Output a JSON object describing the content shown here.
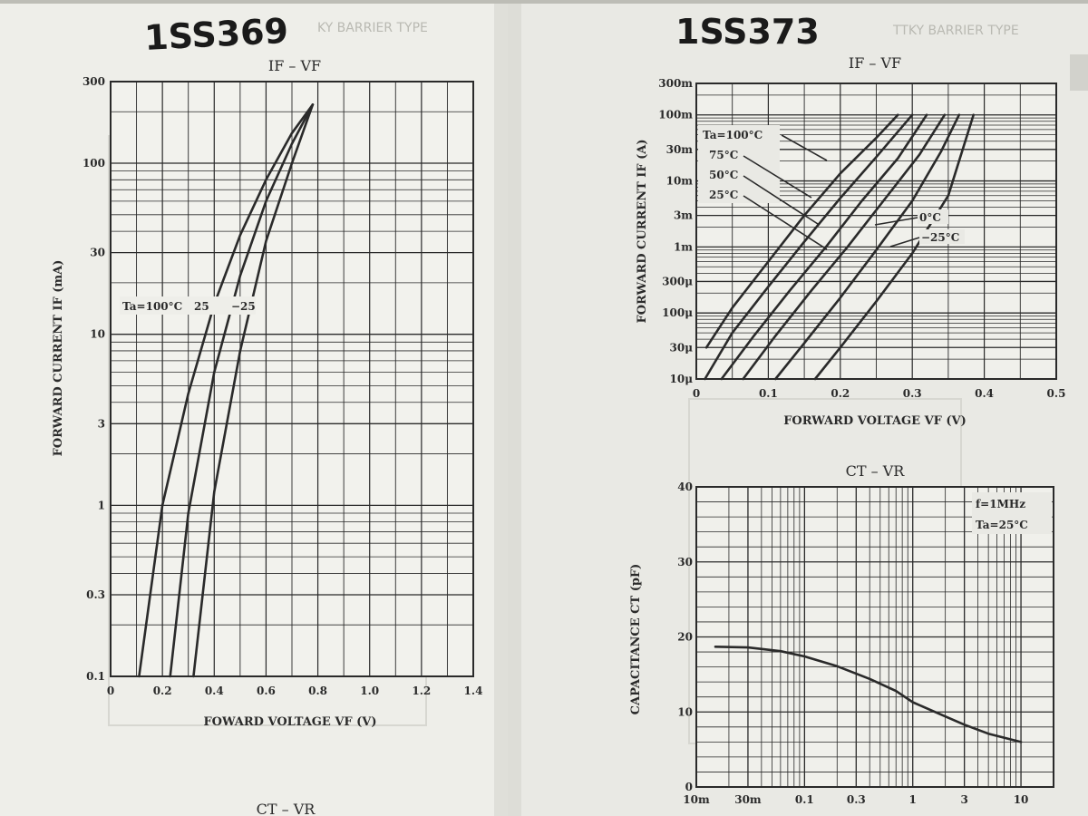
{
  "handwritten": {
    "left": "1SS369",
    "right": "1SS373"
  },
  "mirrored_header_left": "KY BARRIER TYPE",
  "mirrored_header_right": "TTKY BARRIER TYPE",
  "colors": {
    "paper": "#ebebe6",
    "ink": "#2a2a2a",
    "shadow": "#c9c9c2"
  },
  "chart_data": [
    {
      "type": "line",
      "title": "IF – VF",
      "xlabel": "FOWARD VOLTAGE   VF  (V)",
      "ylabel": "FORWARD CURRENT   IF   (mA)",
      "x_ticks": [
        "0",
        "0.2",
        "0.4",
        "0.6",
        "0.8",
        "1.0",
        "1.2",
        "1.4"
      ],
      "y_ticks": [
        "0.1",
        "0.3",
        "1",
        "3",
        "10",
        "30",
        "100",
        "300"
      ],
      "xlim": [
        0,
        1.4
      ],
      "ylim": [
        0.1,
        300
      ],
      "yscale": "log",
      "annotations": {
        "ta100": "Ta=100°C",
        "t25": "25",
        "tm25": "−25"
      },
      "series": [
        {
          "x": [
            0.11,
            0.2,
            0.3,
            0.4,
            0.5,
            0.6,
            0.7,
            0.78
          ],
          "y": [
            0.1,
            1,
            4.5,
            15,
            38,
            80,
            150,
            220
          ]
        },
        {
          "x": [
            0.23,
            0.3,
            0.4,
            0.5,
            0.6,
            0.7,
            0.78
          ],
          "y": [
            0.1,
            0.9,
            6,
            22,
            60,
            130,
            220
          ]
        },
        {
          "x": [
            0.32,
            0.4,
            0.5,
            0.6,
            0.7,
            0.78
          ],
          "y": [
            0.1,
            1.2,
            8,
            35,
            100,
            220
          ]
        }
      ]
    },
    {
      "type": "line",
      "title": "IF – VF",
      "xlabel": "FORWARD VOLTAGE   VF  (V)",
      "ylabel": "FORWARD CURRENT   IF  (A)",
      "x_ticks": [
        "0",
        "0.1",
        "0.2",
        "0.3",
        "0.4",
        "0.5"
      ],
      "y_ticks": [
        "10μ",
        "30μ",
        "100μ",
        "300μ",
        "1m",
        "3m",
        "10m",
        "30m",
        "100m",
        "300m"
      ],
      "xlim": [
        0,
        0.5
      ],
      "ylim": [
        1e-05,
        0.3
      ],
      "yscale": "log",
      "annotations": {
        "t100": "Ta=100°C",
        "t75": "75°C",
        "t50": "50°C",
        "t25": "25°C",
        "t0": "0°C",
        "tm25": "−25°C"
      },
      "series": [
        {
          "x": [
            0.014,
            0.05,
            0.1,
            0.15,
            0.2,
            0.25,
            0.28
          ],
          "y": [
            3e-05,
            0.00012,
            0.0006,
            0.003,
            0.013,
            0.045,
            0.1
          ]
        },
        {
          "x": [
            0.012,
            0.05,
            0.1,
            0.15,
            0.2,
            0.25,
            0.3
          ],
          "y": [
            1e-05,
            5e-05,
            0.00025,
            0.0012,
            0.0055,
            0.023,
            0.1
          ]
        },
        {
          "x": [
            0.035,
            0.08,
            0.13,
            0.18,
            0.23,
            0.28,
            0.32
          ],
          "y": [
            1e-05,
            4.5e-05,
            0.00022,
            0.001,
            0.005,
            0.022,
            0.1
          ]
        },
        {
          "x": [
            0.065,
            0.11,
            0.16,
            0.21,
            0.26,
            0.31,
            0.345
          ],
          "y": [
            1e-05,
            4.5e-05,
            0.00022,
            0.001,
            0.005,
            0.025,
            0.1
          ]
        },
        {
          "x": [
            0.11,
            0.15,
            0.2,
            0.25,
            0.3,
            0.34,
            0.365
          ],
          "y": [
            1e-05,
            3.5e-05,
            0.00017,
            0.0009,
            0.005,
            0.028,
            0.1
          ]
        },
        {
          "x": [
            0.165,
            0.2,
            0.25,
            0.3,
            0.35,
            0.385
          ],
          "y": [
            1e-05,
            3e-05,
            0.00015,
            0.0008,
            0.006,
            0.1
          ]
        }
      ]
    },
    {
      "type": "line",
      "title": "CT – VR",
      "xlabel": "",
      "ylabel": "CAPACITANCE   CT   (pF)",
      "x_ticks": [
        "10m",
        "30m",
        "0.1",
        "0.3",
        "1",
        "3",
        "10"
      ],
      "y_ticks": [
        "0",
        "10",
        "20",
        "30",
        "40"
      ],
      "xlim": [
        0.01,
        20
      ],
      "ylim": [
        0,
        40
      ],
      "xscale": "log",
      "annotations": {
        "freq": "f=1MHz",
        "temp": "Ta=25°C"
      },
      "series": [
        {
          "x": [
            0.015,
            0.03,
            0.06,
            0.1,
            0.2,
            0.4,
            0.7,
            1,
            2,
            3,
            5,
            10
          ],
          "y": [
            18.7,
            18.6,
            18.1,
            17.4,
            16.1,
            14.4,
            12.8,
            11.3,
            9.4,
            8.3,
            7.1,
            6.0
          ]
        }
      ]
    },
    {
      "type": "line",
      "title": "CT – VR"
    }
  ]
}
